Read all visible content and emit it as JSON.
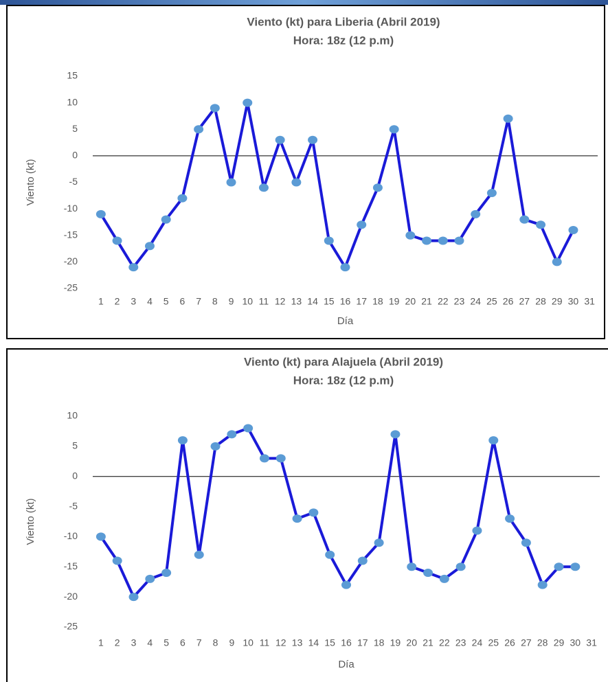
{
  "chart_data": [
    {
      "type": "line",
      "title": "Viento (kt) para Liberia   (Abril  2019)",
      "subtitle": "Hora: 18z (12 p.m)",
      "x_label": "Día",
      "y_label": "Viento (kt)",
      "categories": [
        "1",
        "2",
        "3",
        "4",
        "5",
        "6",
        "7",
        "8",
        "9",
        "10",
        "11",
        "12",
        "13",
        "14",
        "15",
        "16",
        "17",
        "18",
        "19",
        "20",
        "21",
        "22",
        "23",
        "24",
        "25",
        "26",
        "27",
        "28",
        "29",
        "30",
        "31"
      ],
      "values": [
        -11,
        -16,
        -21,
        -17,
        -12,
        -8,
        5,
        9,
        -5,
        10,
        -6,
        3,
        -5,
        3,
        -16,
        -21,
        -13,
        -6,
        5,
        -15,
        -16,
        -16,
        -16,
        -11,
        -7,
        7,
        -12,
        -13,
        -20,
        -14,
        null
      ],
      "color": "#1a1ad8",
      "marker_color": "#5b9bd5",
      "ylim": [
        -25,
        15
      ],
      "yticks": [
        15,
        10,
        5,
        0,
        -5,
        -10,
        -15,
        -20,
        -25
      ]
    },
    {
      "type": "line",
      "title": "Viento (kt) para Alajuela  (Abril 2019)",
      "subtitle": "Hora: 18z (12 p.m)",
      "x_label": "Día",
      "y_label": "Viento (kt)",
      "categories": [
        "1",
        "2",
        "3",
        "4",
        "5",
        "6",
        "7",
        "8",
        "9",
        "10",
        "11",
        "12",
        "13",
        "14",
        "15",
        "16",
        "17",
        "18",
        "19",
        "20",
        "21",
        "22",
        "23",
        "24",
        "25",
        "26",
        "27",
        "28",
        "29",
        "30",
        "31"
      ],
      "values": [
        -10,
        -14,
        -20,
        -17,
        -16,
        6,
        -13,
        5,
        7,
        8,
        3,
        3,
        -7,
        -6,
        -13,
        -18,
        -14,
        -11,
        7,
        -15,
        -16,
        -17,
        -15,
        -9,
        6,
        -7,
        -11,
        -18,
        -15,
        -15,
        null
      ],
      "color": "#1a1ad8",
      "marker_color": "#5b9bd5",
      "ylim": [
        -25,
        10
      ],
      "yticks": [
        10,
        5,
        0,
        -5,
        -10,
        -15,
        -20,
        -25
      ]
    }
  ]
}
